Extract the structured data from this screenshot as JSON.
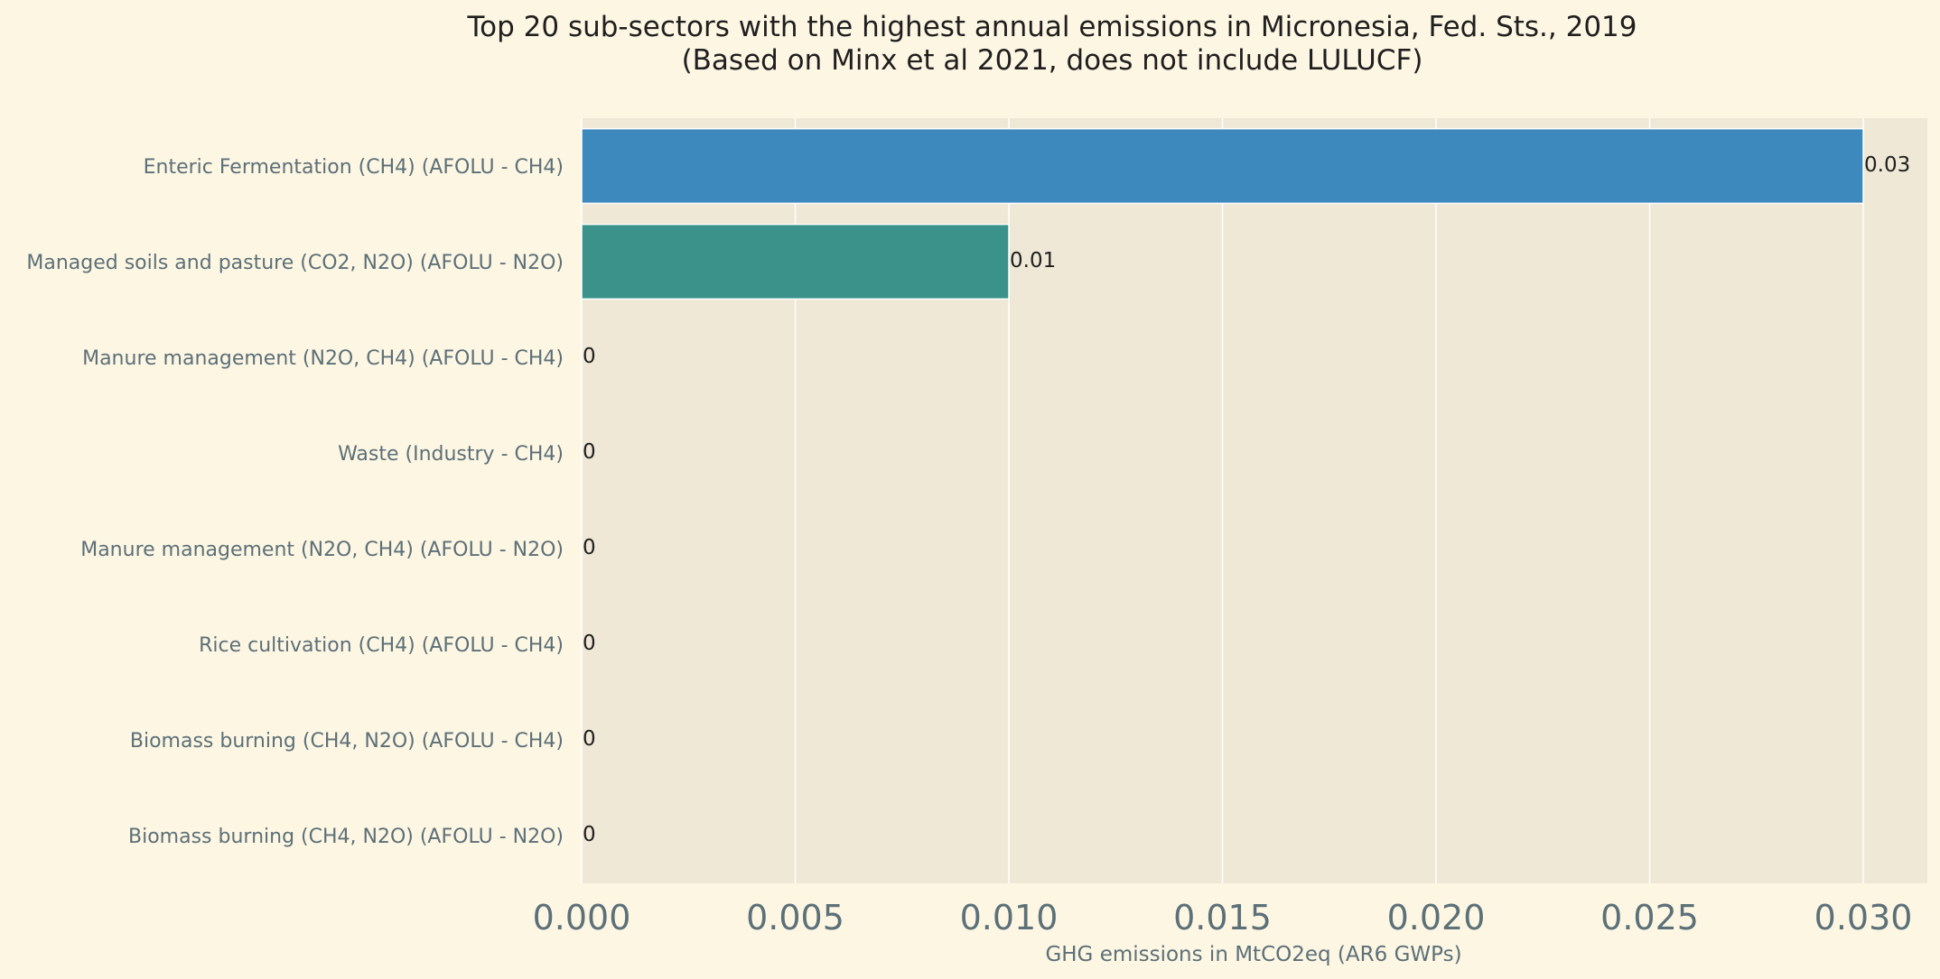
{
  "chart_data": {
    "type": "bar",
    "orientation": "horizontal",
    "title": "Top 20 sub-sectors with the highest annual emissions in Micronesia, Fed. Sts., 2019",
    "subtitle": "(Based on Minx et al 2021, does not include LULUCF)",
    "xlabel": "GHG emissions in MtCO2eq (AR6 GWPs)",
    "ylabel": "",
    "xlim": [
      0,
      0.0315
    ],
    "xticks": [
      "0.000",
      "0.005",
      "0.010",
      "0.015",
      "0.020",
      "0.025",
      "0.030"
    ],
    "xtick_values": [
      0,
      0.005,
      0.01,
      0.015,
      0.02,
      0.025,
      0.03
    ],
    "grid": true,
    "categories": [
      "Enteric Fermentation (CH4) (AFOLU - CH4)",
      "Managed soils and pasture (CO2, N2O) (AFOLU - N2O)",
      "Manure management (N2O, CH4) (AFOLU - CH4)",
      "Waste (Industry - CH4)",
      "Manure management (N2O, CH4) (AFOLU - N2O)",
      "Rice cultivation (CH4) (AFOLU - CH4)",
      "Biomass burning (CH4, N2O) (AFOLU - CH4)",
      "Biomass burning (CH4, N2O) (AFOLU - N2O)"
    ],
    "values": [
      0.03,
      0.01,
      0,
      0,
      0,
      0,
      0,
      0
    ],
    "data_labels": [
      "0.03",
      "0.01",
      "0",
      "0",
      "0",
      "0",
      "0",
      "0"
    ],
    "bar_colors": [
      "#3d88bd",
      "#3a928a",
      "#3d88bd",
      "#3d88bd",
      "#3d88bd",
      "#3d88bd",
      "#3d88bd",
      "#3d88bd"
    ]
  },
  "colors": {
    "background": "#fdf6e3",
    "plot_background": "#f0e8d6",
    "grid": "#ffffff"
  }
}
